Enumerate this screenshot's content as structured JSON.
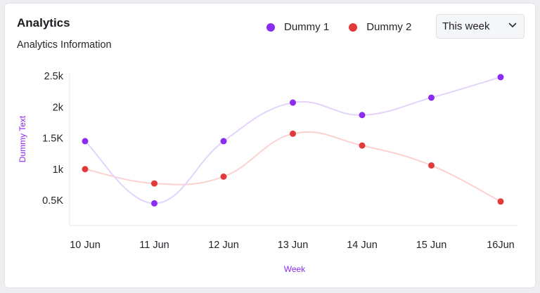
{
  "header": {
    "title": "Analytics",
    "subtitle": "Analytics Information"
  },
  "period_select": {
    "value": "This week"
  },
  "colors": {
    "series1": "#8a2cf2",
    "series1_line": "#e4d4fb",
    "series2": "#e23a3a",
    "series2_line": "#fbd2cf",
    "axis_title": "#8a2cf2"
  },
  "chart_data": {
    "type": "line",
    "categories": [
      "10 Jun",
      "11 Jun",
      "12 Jun",
      "13 Jun",
      "14 Jun",
      "15 Jun",
      "16Jun"
    ],
    "series": [
      {
        "name": "Dummy 1",
        "values": [
          1450,
          450,
          1450,
          2070,
          1870,
          2150,
          2480
        ]
      },
      {
        "name": "Dummy 2",
        "values": [
          1000,
          770,
          880,
          1570,
          1380,
          1060,
          480
        ]
      }
    ],
    "yticks": [
      {
        "value": 500,
        "label": "0.5K"
      },
      {
        "value": 1000,
        "label": "1k"
      },
      {
        "value": 1500,
        "label": "1.5K"
      },
      {
        "value": 2000,
        "label": "2k"
      },
      {
        "value": 2500,
        "label": "2.5k"
      }
    ],
    "ylim": [
      0,
      2500
    ],
    "xlabel": "Week",
    "ylabel": "Dummy Text",
    "smooth": true,
    "grid": false,
    "legend_position": "top-right"
  }
}
